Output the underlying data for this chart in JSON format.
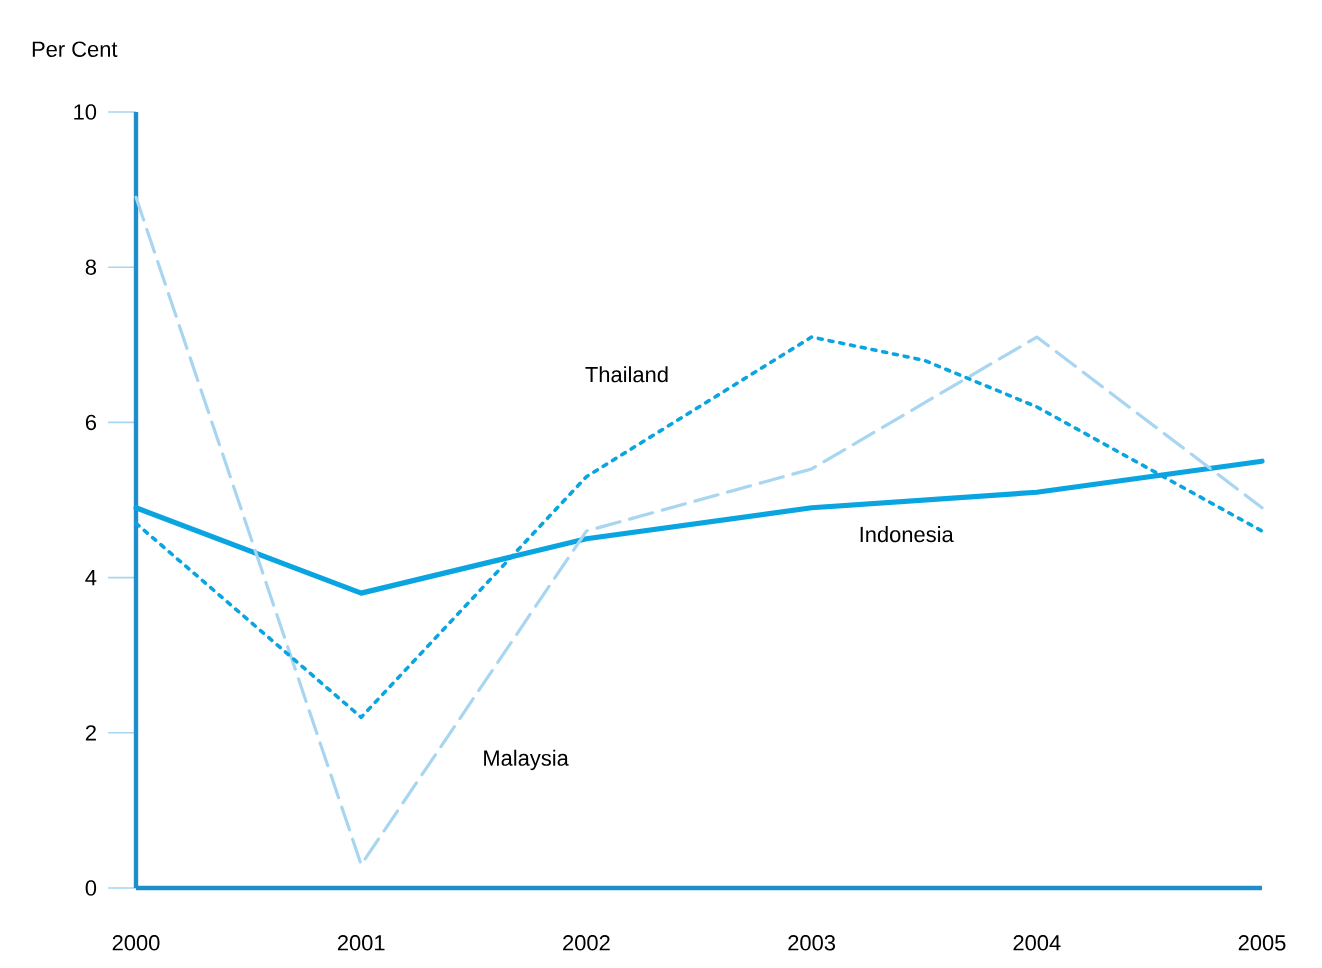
{
  "chart_data": {
    "type": "line",
    "ylabel": "Per Cent",
    "x": [
      2000,
      2001,
      2002,
      2003,
      2004,
      2005
    ],
    "xlim": [
      2000,
      2005
    ],
    "xticks": [
      2000,
      2001,
      2002,
      2003,
      2004,
      2005
    ],
    "ylim": [
      0,
      10
    ],
    "yticks": [
      0,
      2,
      4,
      6,
      8,
      10
    ],
    "grid": false,
    "marker": "none",
    "series": [
      {
        "name": "Indonesia",
        "color": "#0aa5e0",
        "line_style": "solid",
        "values": [
          4.9,
          3.8,
          4.5,
          4.9,
          5.1,
          5.5
        ]
      },
      {
        "name": "Malaysia",
        "color": "#a8d5f0",
        "line_style": "dashed",
        "values": [
          8.9,
          0.3,
          4.6,
          5.4,
          7.1,
          4.9
        ]
      },
      {
        "name": "Thailand",
        "color": "#0aa5e0",
        "line_style": "dotted",
        "x": [
          2000,
          2001,
          2002,
          2003,
          2003.5,
          2004,
          2005
        ],
        "values": [
          4.7,
          2.2,
          5.3,
          7.1,
          6.8,
          6.2,
          4.6
        ]
      }
    ]
  }
}
